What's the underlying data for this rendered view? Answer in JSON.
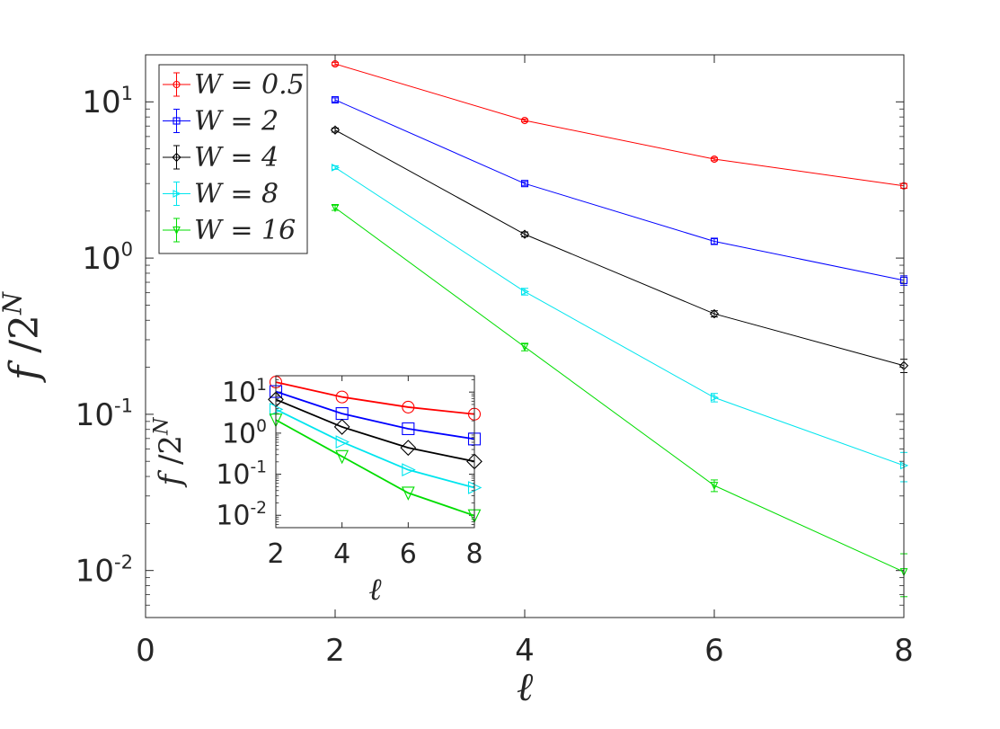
{
  "chart_data": [
    {
      "type": "line",
      "xlabel": "ℓ",
      "ylabel": "f / 2^N",
      "yscale": "log",
      "xlim": [
        0,
        8
      ],
      "ylim": [
        0.005,
        20
      ],
      "xticks": [
        0,
        2,
        4,
        6,
        8
      ],
      "xtick_labels": [
        "0",
        "2",
        "4",
        "6",
        "8"
      ],
      "yticks": [
        0.01,
        0.1,
        1,
        10
      ],
      "ytick_labels": [
        {
          "base": "10",
          "exp": "-2"
        },
        {
          "base": "10",
          "exp": "-1"
        },
        {
          "base": "10",
          "exp": "0"
        },
        {
          "base": "10",
          "exp": "1"
        }
      ],
      "legend_position": "top-left",
      "grid": false,
      "x": [
        2,
        4,
        6,
        8
      ],
      "series": [
        {
          "name": "W = 0.5",
          "color": "#ff0000",
          "marker": "circle",
          "values": [
            17.5,
            7.6,
            4.3,
            2.9
          ],
          "errors": [
            0.4,
            0.15,
            0.1,
            0.1
          ]
        },
        {
          "name": "W = 2",
          "color": "#0000ff",
          "marker": "square",
          "values": [
            10.3,
            3.0,
            1.28,
            0.72
          ],
          "errors": [
            0.3,
            0.08,
            0.05,
            0.05
          ]
        },
        {
          "name": "W = 4",
          "color": "#000000",
          "marker": "diamond",
          "values": [
            6.6,
            1.42,
            0.44,
            0.205
          ],
          "errors": [
            0.2,
            0.05,
            0.02,
            0.02
          ]
        },
        {
          "name": "W = 8",
          "color": "#00e5ee",
          "marker": "triangle-right",
          "values": [
            3.8,
            0.61,
            0.128,
            0.047
          ],
          "errors": [
            0.1,
            0.03,
            0.008,
            0.01
          ]
        },
        {
          "name": "W = 16",
          "color": "#00dd00",
          "marker": "triangle-down",
          "values": [
            2.1,
            0.27,
            0.035,
            0.0098
          ],
          "errors": [
            0.08,
            0.015,
            0.003,
            0.003
          ]
        }
      ]
    },
    {
      "type": "line",
      "role": "inset",
      "xlabel": "ℓ",
      "ylabel": "f / 2^N",
      "yscale": "log",
      "xlim": [
        2,
        8
      ],
      "ylim": [
        0.005,
        25
      ],
      "xticks": [
        2,
        4,
        6,
        8
      ],
      "xtick_labels": [
        "2",
        "4",
        "6",
        "8"
      ],
      "yticks": [
        0.01,
        0.1,
        1,
        10
      ],
      "ytick_labels": [
        {
          "base": "10",
          "exp": "-2"
        },
        {
          "base": "10",
          "exp": "-1"
        },
        {
          "base": "10",
          "exp": "0"
        },
        {
          "base": "10",
          "exp": "1"
        }
      ],
      "grid": false,
      "x": [
        2,
        4,
        6,
        8
      ],
      "series": [
        {
          "color": "#ff0000",
          "marker": "circle",
          "values": [
            17.5,
            7.6,
            4.3,
            2.9
          ]
        },
        {
          "color": "#0000ff",
          "marker": "square",
          "values": [
            10.3,
            3.0,
            1.28,
            0.72
          ]
        },
        {
          "color": "#000000",
          "marker": "diamond",
          "values": [
            6.6,
            1.42,
            0.44,
            0.205
          ]
        },
        {
          "color": "#00e5ee",
          "marker": "triangle-right",
          "values": [
            3.8,
            0.61,
            0.128,
            0.047
          ]
        },
        {
          "color": "#00dd00",
          "marker": "triangle-down",
          "values": [
            2.1,
            0.27,
            0.035,
            0.0098
          ]
        }
      ]
    }
  ]
}
